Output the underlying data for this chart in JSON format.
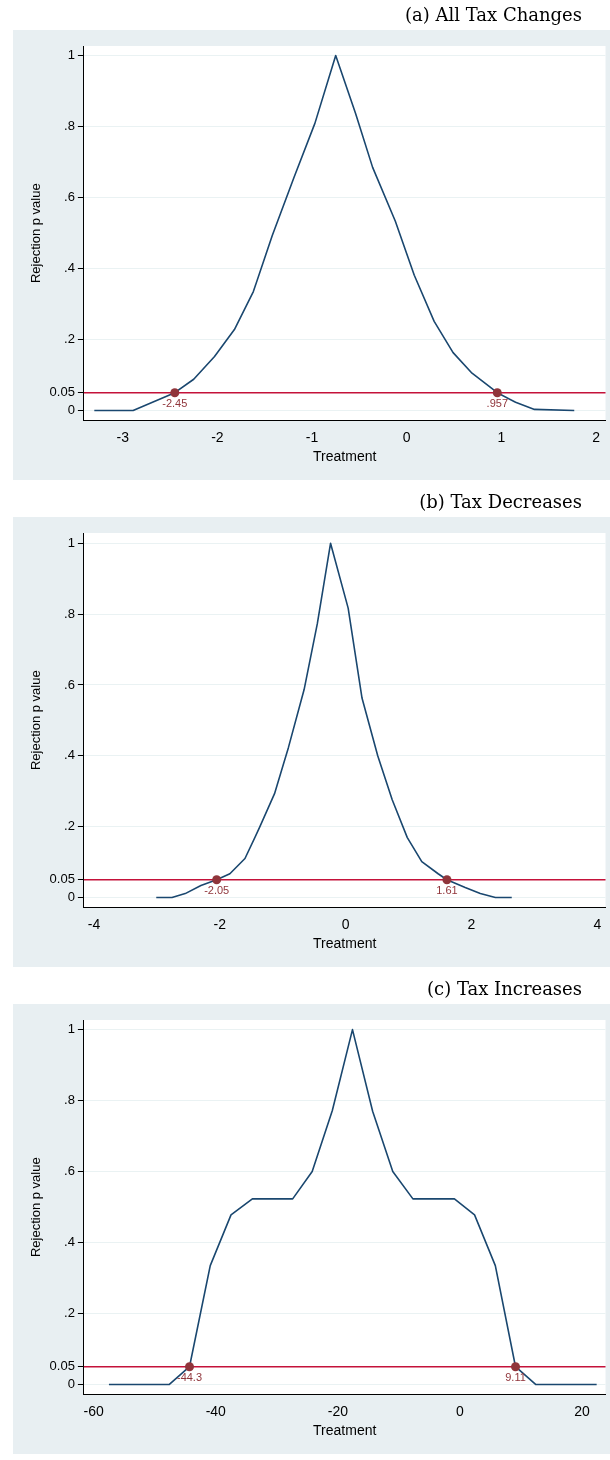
{
  "chart_data": [
    {
      "type": "line",
      "title": "(a) All Tax Changes",
      "xlabel": "Treatment",
      "ylabel": "Rejection p value",
      "series": [
        {
          "type": "line",
          "color": "#1a476f",
          "marker": "none",
          "x": [
            -3.3,
            -2.89,
            -2.45,
            -2.25,
            -2.03,
            -1.82,
            -1.62,
            -1.42,
            -1.19,
            -0.97,
            -0.75,
            -0.54,
            -0.36,
            -0.12,
            0.08,
            0.29,
            0.49,
            0.69,
            0.957,
            1.15,
            1.35,
            1.77
          ],
          "values": [
            0,
            0,
            0.05,
            0.088,
            0.152,
            0.228,
            0.335,
            0.493,
            0.657,
            0.809,
            1,
            0.837,
            0.685,
            0.533,
            0.381,
            0.251,
            0.163,
            0.105,
            0.05,
            0.023,
            0.003,
            0
          ]
        },
        {
          "type": "scatter",
          "color": "#90353b",
          "marker": "circle",
          "x": [
            -2.45,
            0.957
          ],
          "values": [
            0.05,
            0.05
          ]
        }
      ],
      "annotations": [
        {
          "text": "-2.45",
          "x": -2.45,
          "y": 0.05
        },
        {
          "text": ".957",
          "x": 0.957,
          "y": 0.05
        }
      ],
      "ref_lines": [
        {
          "axis": "y",
          "value": 0.05,
          "color": "#c4123a"
        }
      ],
      "xlim": [
        -3.41,
        2.1
      ],
      "xticks": [
        -3,
        -2,
        -1,
        0,
        1,
        2
      ],
      "ylim": [
        -0.028,
        1.027
      ],
      "yticks": [
        0,
        0.05,
        {
          "value": 0.2,
          "label": ".2"
        },
        {
          "value": 0.4,
          "label": ".4"
        },
        {
          "value": 0.6,
          "label": ".6"
        },
        {
          "value": 0.8,
          "label": ".8"
        },
        1
      ],
      "grid": "y",
      "legend": false
    },
    {
      "type": "line",
      "title": "(b) Tax Decreases",
      "xlabel": "Treatment",
      "ylabel": "Rejection p value",
      "series": [
        {
          "type": "line",
          "color": "#1a476f",
          "marker": "none",
          "x": [
            -3.01,
            -2.76,
            -2.55,
            -2.3,
            -2.05,
            -1.84,
            -1.6,
            -1.37,
            -1.13,
            -0.91,
            -0.66,
            -0.45,
            -0.24,
            0.04,
            0.26,
            0.51,
            0.74,
            0.98,
            1.21,
            1.47,
            1.61,
            1.9,
            2.14,
            2.38,
            2.64
          ],
          "values": [
            0,
            0,
            0.011,
            0.034,
            0.05,
            0.067,
            0.11,
            0.197,
            0.293,
            0.423,
            0.587,
            0.773,
            1,
            0.817,
            0.563,
            0.4,
            0.276,
            0.169,
            0.101,
            0.067,
            0.05,
            0.028,
            0.011,
            0,
            0
          ]
        },
        {
          "type": "scatter",
          "color": "#90353b",
          "marker": "circle",
          "x": [
            -2.05,
            1.61
          ],
          "values": [
            0.05,
            0.05
          ]
        }
      ],
      "annotations": [
        {
          "text": "-2.05",
          "x": -2.05,
          "y": 0.05
        },
        {
          "text": "1.61",
          "x": 1.61,
          "y": 0.05
        }
      ],
      "ref_lines": [
        {
          "axis": "y",
          "value": 0.05,
          "color": "#c4123a"
        }
      ],
      "xlim": [
        -4.16,
        4.13
      ],
      "xticks": [
        -4,
        -2,
        0,
        2,
        4
      ],
      "ylim": [
        -0.028,
        1.029
      ],
      "yticks": [
        0,
        0.05,
        {
          "value": 0.2,
          "label": ".2"
        },
        {
          "value": 0.4,
          "label": ".4"
        },
        {
          "value": 0.6,
          "label": ".6"
        },
        {
          "value": 0.8,
          "label": ".8"
        },
        1
      ],
      "grid": "y",
      "legend": false
    },
    {
      "type": "line",
      "title": "(c) Tax Increases",
      "xlabel": "Treatment",
      "ylabel": "Rejection p value",
      "series": [
        {
          "type": "line",
          "color": "#1a476f",
          "marker": "none",
          "x": [
            -57.5,
            -47.6,
            -44.3,
            -40.9,
            -37.5,
            -34,
            -27.4,
            -24.2,
            -20.9,
            -17.6,
            -14.3,
            -11,
            -7.7,
            -0.9,
            2.4,
            5.8,
            9.11,
            12.4,
            22.4
          ],
          "values": [
            0,
            0,
            0.05,
            0.335,
            0.478,
            0.523,
            0.523,
            0.6,
            0.772,
            1,
            0.77,
            0.6,
            0.523,
            0.523,
            0.478,
            0.335,
            0.05,
            0,
            0
          ]
        },
        {
          "type": "scatter",
          "color": "#90353b",
          "marker": "circle",
          "x": [
            -44.3,
            9.11
          ],
          "values": [
            0.05,
            0.05
          ]
        }
      ],
      "annotations": [
        {
          "text": "-44.3",
          "x": -44.3,
          "y": 0.05
        },
        {
          "text": "9.11",
          "x": 9.11,
          "y": 0.05
        }
      ],
      "ref_lines": [
        {
          "axis": "y",
          "value": 0.05,
          "color": "#c4123a"
        }
      ],
      "xlim": [
        -61.6,
        23.85
      ],
      "xticks": [
        -60,
        -40,
        -20,
        0,
        20
      ],
      "ylim": [
        -0.028,
        1.027
      ],
      "yticks": [
        0,
        0.05,
        {
          "value": 0.2,
          "label": ".2"
        },
        {
          "value": 0.4,
          "label": ".4"
        },
        {
          "value": 0.6,
          "label": ".6"
        },
        {
          "value": 0.8,
          "label": ".8"
        },
        1
      ],
      "grid": "y",
      "legend": false
    }
  ]
}
